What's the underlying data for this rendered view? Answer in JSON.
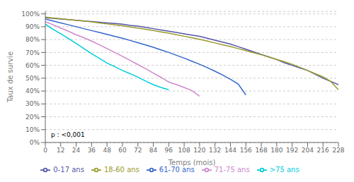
{
  "chart_data": {
    "type": "line",
    "xlabel": "Temps (mois)",
    "ylabel": "Taux de survie",
    "annotation": "p : <0,001",
    "xlim": [
      0,
      228
    ],
    "ylim": [
      0.0,
      1.02
    ],
    "xticks": [
      0,
      12,
      24,
      36,
      48,
      60,
      72,
      84,
      96,
      108,
      120,
      132,
      144,
      156,
      168,
      180,
      192,
      204,
      216,
      228
    ],
    "yticks": [
      {
        "value": 0.0,
        "label": "0%"
      },
      {
        "value": 0.1,
        "label": "10%"
      },
      {
        "value": 0.2,
        "label": "20%"
      },
      {
        "value": 0.3,
        "label": "30%"
      },
      {
        "value": 0.4,
        "label": "40%"
      },
      {
        "value": 0.5,
        "label": "50%"
      },
      {
        "value": 0.6,
        "label": "60%"
      },
      {
        "value": 0.7,
        "label": "70%"
      },
      {
        "value": 0.8,
        "label": "80%"
      },
      {
        "value": 0.9,
        "label": "90%"
      },
      {
        "value": 1.0,
        "label": "100%"
      }
    ],
    "grid": "y",
    "legend": "bottom",
    "series": [
      {
        "name": "0-17 ans",
        "color": "#5555aa",
        "x": [
          0,
          6,
          12,
          18,
          24,
          30,
          36,
          42,
          48,
          54,
          60,
          66,
          72,
          78,
          84,
          90,
          96,
          102,
          108,
          114,
          120,
          126,
          132,
          138,
          144,
          150,
          156,
          162,
          168,
          174,
          180,
          186,
          192,
          198,
          204,
          210,
          216,
          222,
          228
        ],
        "values": [
          0.97,
          0.965,
          0.96,
          0.955,
          0.95,
          0.945,
          0.94,
          0.935,
          0.93,
          0.925,
          0.92,
          0.91,
          0.905,
          0.895,
          0.885,
          0.875,
          0.865,
          0.855,
          0.845,
          0.835,
          0.825,
          0.81,
          0.795,
          0.78,
          0.765,
          0.745,
          0.725,
          0.705,
          0.685,
          0.665,
          0.645,
          0.62,
          0.6,
          0.58,
          0.56,
          0.53,
          0.5,
          0.475,
          0.45
        ]
      },
      {
        "name": "18-60 ans",
        "color": "#9a9a2a",
        "x": [
          0,
          6,
          12,
          18,
          24,
          30,
          36,
          42,
          48,
          54,
          60,
          66,
          72,
          78,
          84,
          90,
          96,
          102,
          108,
          114,
          120,
          126,
          132,
          138,
          144,
          150,
          156,
          162,
          168,
          174,
          180,
          186,
          192,
          198,
          204,
          210,
          216,
          222,
          228
        ],
        "values": [
          0.975,
          0.968,
          0.962,
          0.956,
          0.95,
          0.944,
          0.938,
          0.93,
          0.922,
          0.914,
          0.907,
          0.898,
          0.89,
          0.88,
          0.87,
          0.86,
          0.85,
          0.838,
          0.826,
          0.814,
          0.802,
          0.788,
          0.774,
          0.76,
          0.746,
          0.73,
          0.714,
          0.698,
          0.682,
          0.664,
          0.646,
          0.628,
          0.608,
          0.585,
          0.56,
          0.535,
          0.51,
          0.475,
          0.41
        ]
      },
      {
        "name": "61-70 ans",
        "color": "#3366cc",
        "x": [
          0,
          6,
          12,
          18,
          24,
          30,
          36,
          42,
          48,
          54,
          60,
          66,
          72,
          78,
          84,
          90,
          96,
          102,
          108,
          114,
          120,
          126,
          132,
          138,
          144,
          150,
          156
        ],
        "values": [
          0.96,
          0.945,
          0.93,
          0.915,
          0.9,
          0.885,
          0.87,
          0.855,
          0.84,
          0.825,
          0.81,
          0.793,
          0.776,
          0.758,
          0.74,
          0.72,
          0.7,
          0.678,
          0.656,
          0.632,
          0.608,
          0.582,
          0.554,
          0.524,
          0.492,
          0.455,
          0.37
        ]
      },
      {
        "name": "71-75 ans",
        "color": "#cc88cc",
        "x": [
          0,
          6,
          12,
          18,
          24,
          30,
          36,
          42,
          48,
          54,
          60,
          66,
          72,
          78,
          84,
          90,
          96,
          102,
          108,
          114,
          120
        ],
        "values": [
          0.94,
          0.915,
          0.89,
          0.865,
          0.838,
          0.814,
          0.788,
          0.76,
          0.73,
          0.7,
          0.67,
          0.638,
          0.606,
          0.574,
          0.54,
          0.506,
          0.47,
          0.45,
          0.428,
          0.404,
          0.36
        ]
      },
      {
        "name": ">75 ans",
        "color": "#00ccdd",
        "x": [
          0,
          6,
          12,
          18,
          24,
          30,
          36,
          42,
          48,
          54,
          60,
          66,
          72,
          78,
          84,
          90,
          96
        ],
        "values": [
          0.92,
          0.88,
          0.845,
          0.808,
          0.77,
          0.73,
          0.69,
          0.655,
          0.618,
          0.59,
          0.56,
          0.535,
          0.508,
          0.478,
          0.45,
          0.428,
          0.41
        ]
      }
    ]
  }
}
